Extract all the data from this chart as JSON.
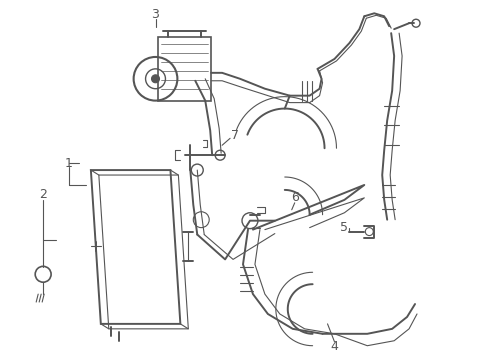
{
  "background_color": "#ffffff",
  "line_color": "#555555",
  "label_color": "#000000",
  "figsize": [
    4.9,
    3.6
  ],
  "dpi": 100,
  "lw_main": 1.4,
  "lw_thin": 0.8,
  "lw_inner": 0.6
}
